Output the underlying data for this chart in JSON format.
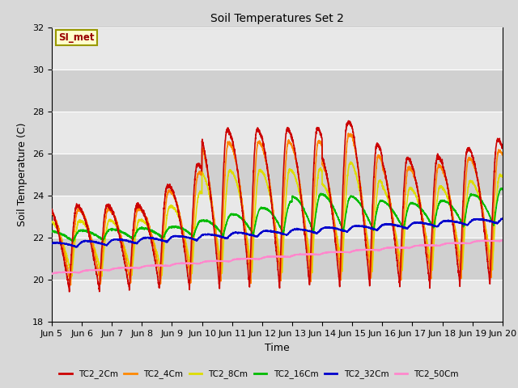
{
  "title": "Soil Temperatures Set 2",
  "xlabel": "Time",
  "ylabel": "Soil Temperature (C)",
  "ylim": [
    18,
    32
  ],
  "xlim": [
    0,
    360
  ],
  "fig_bg": "#d8d8d8",
  "plot_bg": "#e0e0e0",
  "band_colors": [
    "#e8e8e8",
    "#d0d0d0"
  ],
  "annotation_text": "SI_met",
  "annotation_bg": "#ffffcc",
  "annotation_border": "#999900",
  "tick_labels": [
    "Jun 5",
    "Jun 6",
    "Jun 7",
    "Jun 8",
    "Jun 9",
    "Jun 10",
    "Jun 11",
    "Jun 12",
    "Jun 13",
    "Jun 14",
    "Jun 15",
    "Jun 16",
    "Jun 17",
    "Jun 18",
    "Jun 19",
    "Jun 20"
  ],
  "tick_positions": [
    0,
    24,
    48,
    72,
    96,
    120,
    144,
    168,
    192,
    216,
    240,
    264,
    288,
    312,
    336,
    360
  ],
  "colors": {
    "TC2_2Cm": "#cc0000",
    "TC2_4Cm": "#ff8800",
    "TC2_8Cm": "#dddd00",
    "TC2_16Cm": "#00bb00",
    "TC2_32Cm": "#0000cc",
    "TC2_50Cm": "#ff88cc"
  }
}
